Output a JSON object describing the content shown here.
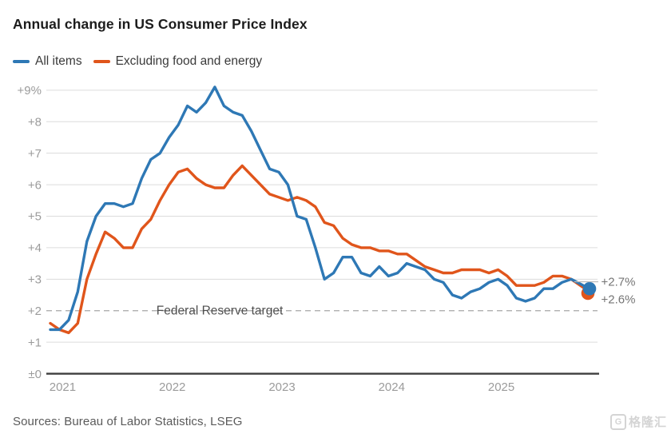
{
  "title": "Annual change in US Consumer Price Index",
  "legend": [
    {
      "label": "All items",
      "color": "#2e78b5"
    },
    {
      "label": "Excluding food and energy",
      "color": "#e0551b"
    }
  ],
  "chart_data": {
    "type": "line",
    "title": "Annual change in US Consumer Price Index",
    "x_range": {
      "start": "2020-12",
      "end": "2025-11",
      "frequency": "monthly",
      "missing": [
        "2025-10"
      ]
    },
    "x_tick_labels": [
      "2021",
      "2022",
      "2023",
      "2024",
      "2025"
    ],
    "y_tick_labels": [
      "+9%",
      "+8",
      "+7",
      "+6",
      "+5",
      "+4",
      "+3",
      "+2",
      "+1",
      "±0"
    ],
    "ylim": [
      0,
      9.5
    ],
    "grid": "horizontal",
    "legend_position": "top-left",
    "reference_line": {
      "value": 2,
      "label": "Federal Reserve target"
    },
    "series": [
      {
        "name": "All items",
        "color": "#2e78b5",
        "end_label": "+2.7%",
        "values": [
          1.4,
          1.4,
          1.7,
          2.6,
          4.2,
          5.0,
          5.4,
          5.4,
          5.3,
          5.4,
          6.2,
          6.8,
          7.0,
          7.5,
          7.9,
          8.5,
          8.3,
          8.6,
          9.1,
          8.5,
          8.3,
          8.2,
          7.7,
          7.1,
          6.5,
          6.4,
          6.0,
          5.0,
          4.9,
          4.0,
          3.0,
          3.2,
          3.7,
          3.7,
          3.2,
          3.1,
          3.4,
          3.1,
          3.2,
          3.5,
          3.4,
          3.3,
          3.0,
          2.9,
          2.5,
          2.4,
          2.6,
          2.7,
          2.9,
          3.0,
          2.8,
          2.4,
          2.3,
          2.4,
          2.7,
          2.7,
          2.9,
          3.0,
          null,
          2.7
        ]
      },
      {
        "name": "Excluding food and energy",
        "color": "#e0551b",
        "end_label": "+2.6%",
        "values": [
          1.6,
          1.4,
          1.3,
          1.6,
          3.0,
          3.8,
          4.5,
          4.3,
          4.0,
          4.0,
          4.6,
          4.9,
          5.5,
          6.0,
          6.4,
          6.5,
          6.2,
          6.0,
          5.9,
          5.9,
          6.3,
          6.6,
          6.3,
          6.0,
          5.7,
          5.6,
          5.5,
          5.6,
          5.5,
          5.3,
          4.8,
          4.7,
          4.3,
          4.1,
          4.0,
          4.0,
          3.9,
          3.9,
          3.8,
          3.8,
          3.6,
          3.4,
          3.3,
          3.2,
          3.2,
          3.3,
          3.3,
          3.3,
          3.2,
          3.3,
          3.1,
          2.8,
          2.8,
          2.8,
          2.9,
          3.1,
          3.1,
          3.0,
          null,
          2.6
        ]
      }
    ]
  },
  "sources": "Sources: Bureau of Labor Statistics, LSEG",
  "watermark": {
    "logo": "G",
    "text": "格隆汇"
  }
}
